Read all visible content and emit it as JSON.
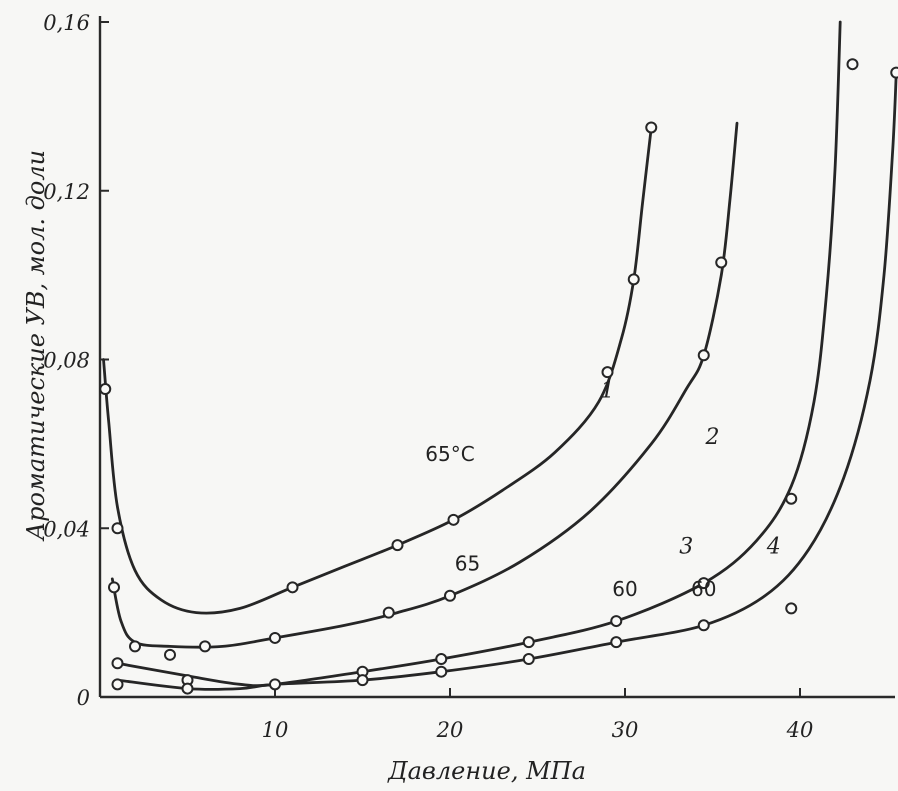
{
  "chart_data": {
    "type": "line",
    "title": "",
    "xlabel": "Давление, МПа",
    "ylabel": "Ароматические УВ, мол. доли",
    "xlim": [
      0,
      46
    ],
    "ylim": [
      0,
      0.16
    ],
    "x_ticks": [
      10,
      20,
      30,
      40
    ],
    "x_tick_labels": [
      "10",
      "20",
      "30",
      "40"
    ],
    "y_ticks": [
      0,
      0.04,
      0.08,
      0.12,
      0.16
    ],
    "y_tick_labels": [
      "0",
      "0,04",
      "0,08",
      "0,12",
      "0,16"
    ],
    "grid": false,
    "legend": "none",
    "series": [
      {
        "name": "1",
        "label": "65°C",
        "markers": [
          [
            0.3,
            0.073
          ],
          [
            1.0,
            0.04
          ],
          [
            11.0,
            0.026
          ],
          [
            17.0,
            0.036
          ],
          [
            20.2,
            0.042
          ],
          [
            29.0,
            0.077
          ],
          [
            30.5,
            0.099
          ],
          [
            31.5,
            0.135
          ]
        ],
        "curve": [
          [
            0.2,
            0.08
          ],
          [
            0.5,
            0.065
          ],
          [
            1.0,
            0.045
          ],
          [
            2.0,
            0.03
          ],
          [
            3.5,
            0.023
          ],
          [
            5.5,
            0.02
          ],
          [
            8.0,
            0.021
          ],
          [
            11.0,
            0.026
          ],
          [
            14.0,
            0.031
          ],
          [
            17.0,
            0.036
          ],
          [
            20.2,
            0.042
          ],
          [
            23.0,
            0.049
          ],
          [
            26.0,
            0.058
          ],
          [
            28.5,
            0.07
          ],
          [
            29.8,
            0.085
          ],
          [
            30.5,
            0.099
          ],
          [
            31.0,
            0.117
          ],
          [
            31.5,
            0.135
          ]
        ]
      },
      {
        "name": "2",
        "label": "65",
        "markers": [
          [
            0.8,
            0.026
          ],
          [
            2.0,
            0.012
          ],
          [
            4.0,
            0.01
          ],
          [
            6.0,
            0.012
          ],
          [
            10.0,
            0.014
          ],
          [
            16.5,
            0.02
          ],
          [
            20.0,
            0.024
          ],
          [
            34.5,
            0.081
          ],
          [
            35.5,
            0.103
          ]
        ],
        "curve": [
          [
            0.7,
            0.028
          ],
          [
            1.2,
            0.018
          ],
          [
            2.0,
            0.013
          ],
          [
            4.0,
            0.012
          ],
          [
            7.0,
            0.012
          ],
          [
            10.0,
            0.014
          ],
          [
            14.0,
            0.017
          ],
          [
            17.0,
            0.02
          ],
          [
            20.0,
            0.024
          ],
          [
            24.0,
            0.032
          ],
          [
            28.0,
            0.044
          ],
          [
            31.5,
            0.06
          ],
          [
            33.5,
            0.073
          ],
          [
            34.5,
            0.081
          ],
          [
            35.5,
            0.1
          ],
          [
            36.0,
            0.118
          ],
          [
            36.4,
            0.136
          ]
        ]
      },
      {
        "name": "3",
        "label": "60",
        "markers": [
          [
            1.0,
            0.008
          ],
          [
            5.0,
            0.004
          ],
          [
            10.0,
            0.003
          ],
          [
            15.0,
            0.006
          ],
          [
            19.5,
            0.009
          ],
          [
            24.5,
            0.013
          ],
          [
            29.5,
            0.018
          ],
          [
            34.5,
            0.027
          ]
        ],
        "curve": [
          [
            1.0,
            0.008
          ],
          [
            5.0,
            0.005
          ],
          [
            8.0,
            0.003
          ],
          [
            10.0,
            0.003
          ],
          [
            15.0,
            0.006
          ],
          [
            19.5,
            0.009
          ],
          [
            24.5,
            0.013
          ],
          [
            29.5,
            0.018
          ],
          [
            34.5,
            0.027
          ],
          [
            37.5,
            0.037
          ],
          [
            39.5,
            0.05
          ],
          [
            40.8,
            0.07
          ],
          [
            41.5,
            0.095
          ],
          [
            42.0,
            0.125
          ],
          [
            42.3,
            0.16
          ]
        ]
      },
      {
        "name": "4",
        "label": "60",
        "markers": [
          [
            1.0,
            0.003
          ],
          [
            5.0,
            0.002
          ],
          [
            15.0,
            0.004
          ],
          [
            19.5,
            0.006
          ],
          [
            24.5,
            0.009
          ],
          [
            29.5,
            0.013
          ],
          [
            34.5,
            0.017
          ],
          [
            39.5,
            0.047
          ],
          [
            39.5,
            0.021
          ],
          [
            43.0,
            0.15
          ],
          [
            45.5,
            0.148
          ]
        ],
        "curve": [
          [
            1.0,
            0.004
          ],
          [
            5.0,
            0.002
          ],
          [
            8.0,
            0.002
          ],
          [
            10.0,
            0.003
          ],
          [
            15.0,
            0.004
          ],
          [
            19.5,
            0.006
          ],
          [
            24.5,
            0.009
          ],
          [
            29.5,
            0.013
          ],
          [
            34.5,
            0.017
          ],
          [
            38.0,
            0.024
          ],
          [
            40.5,
            0.035
          ],
          [
            42.5,
            0.052
          ],
          [
            44.0,
            0.075
          ],
          [
            44.8,
            0.1
          ],
          [
            45.3,
            0.13
          ],
          [
            45.5,
            0.148
          ]
        ]
      }
    ],
    "annotations": [
      {
        "text": "1",
        "x": 29.0,
        "y": 0.071,
        "style": "num"
      },
      {
        "text": "65°C",
        "x": 20.0,
        "y": 0.056,
        "style": "label"
      },
      {
        "text": "2",
        "x": 35.0,
        "y": 0.06,
        "style": "num"
      },
      {
        "text": "65",
        "x": 21.0,
        "y": 0.03,
        "style": "label"
      },
      {
        "text": "3",
        "x": 33.5,
        "y": 0.034,
        "style": "num"
      },
      {
        "text": "60",
        "x": 30.0,
        "y": 0.024,
        "style": "label"
      },
      {
        "text": "4",
        "x": 38.5,
        "y": 0.034,
        "style": "num"
      },
      {
        "text": "60",
        "x": 34.5,
        "y": 0.024,
        "style": "label"
      }
    ]
  }
}
